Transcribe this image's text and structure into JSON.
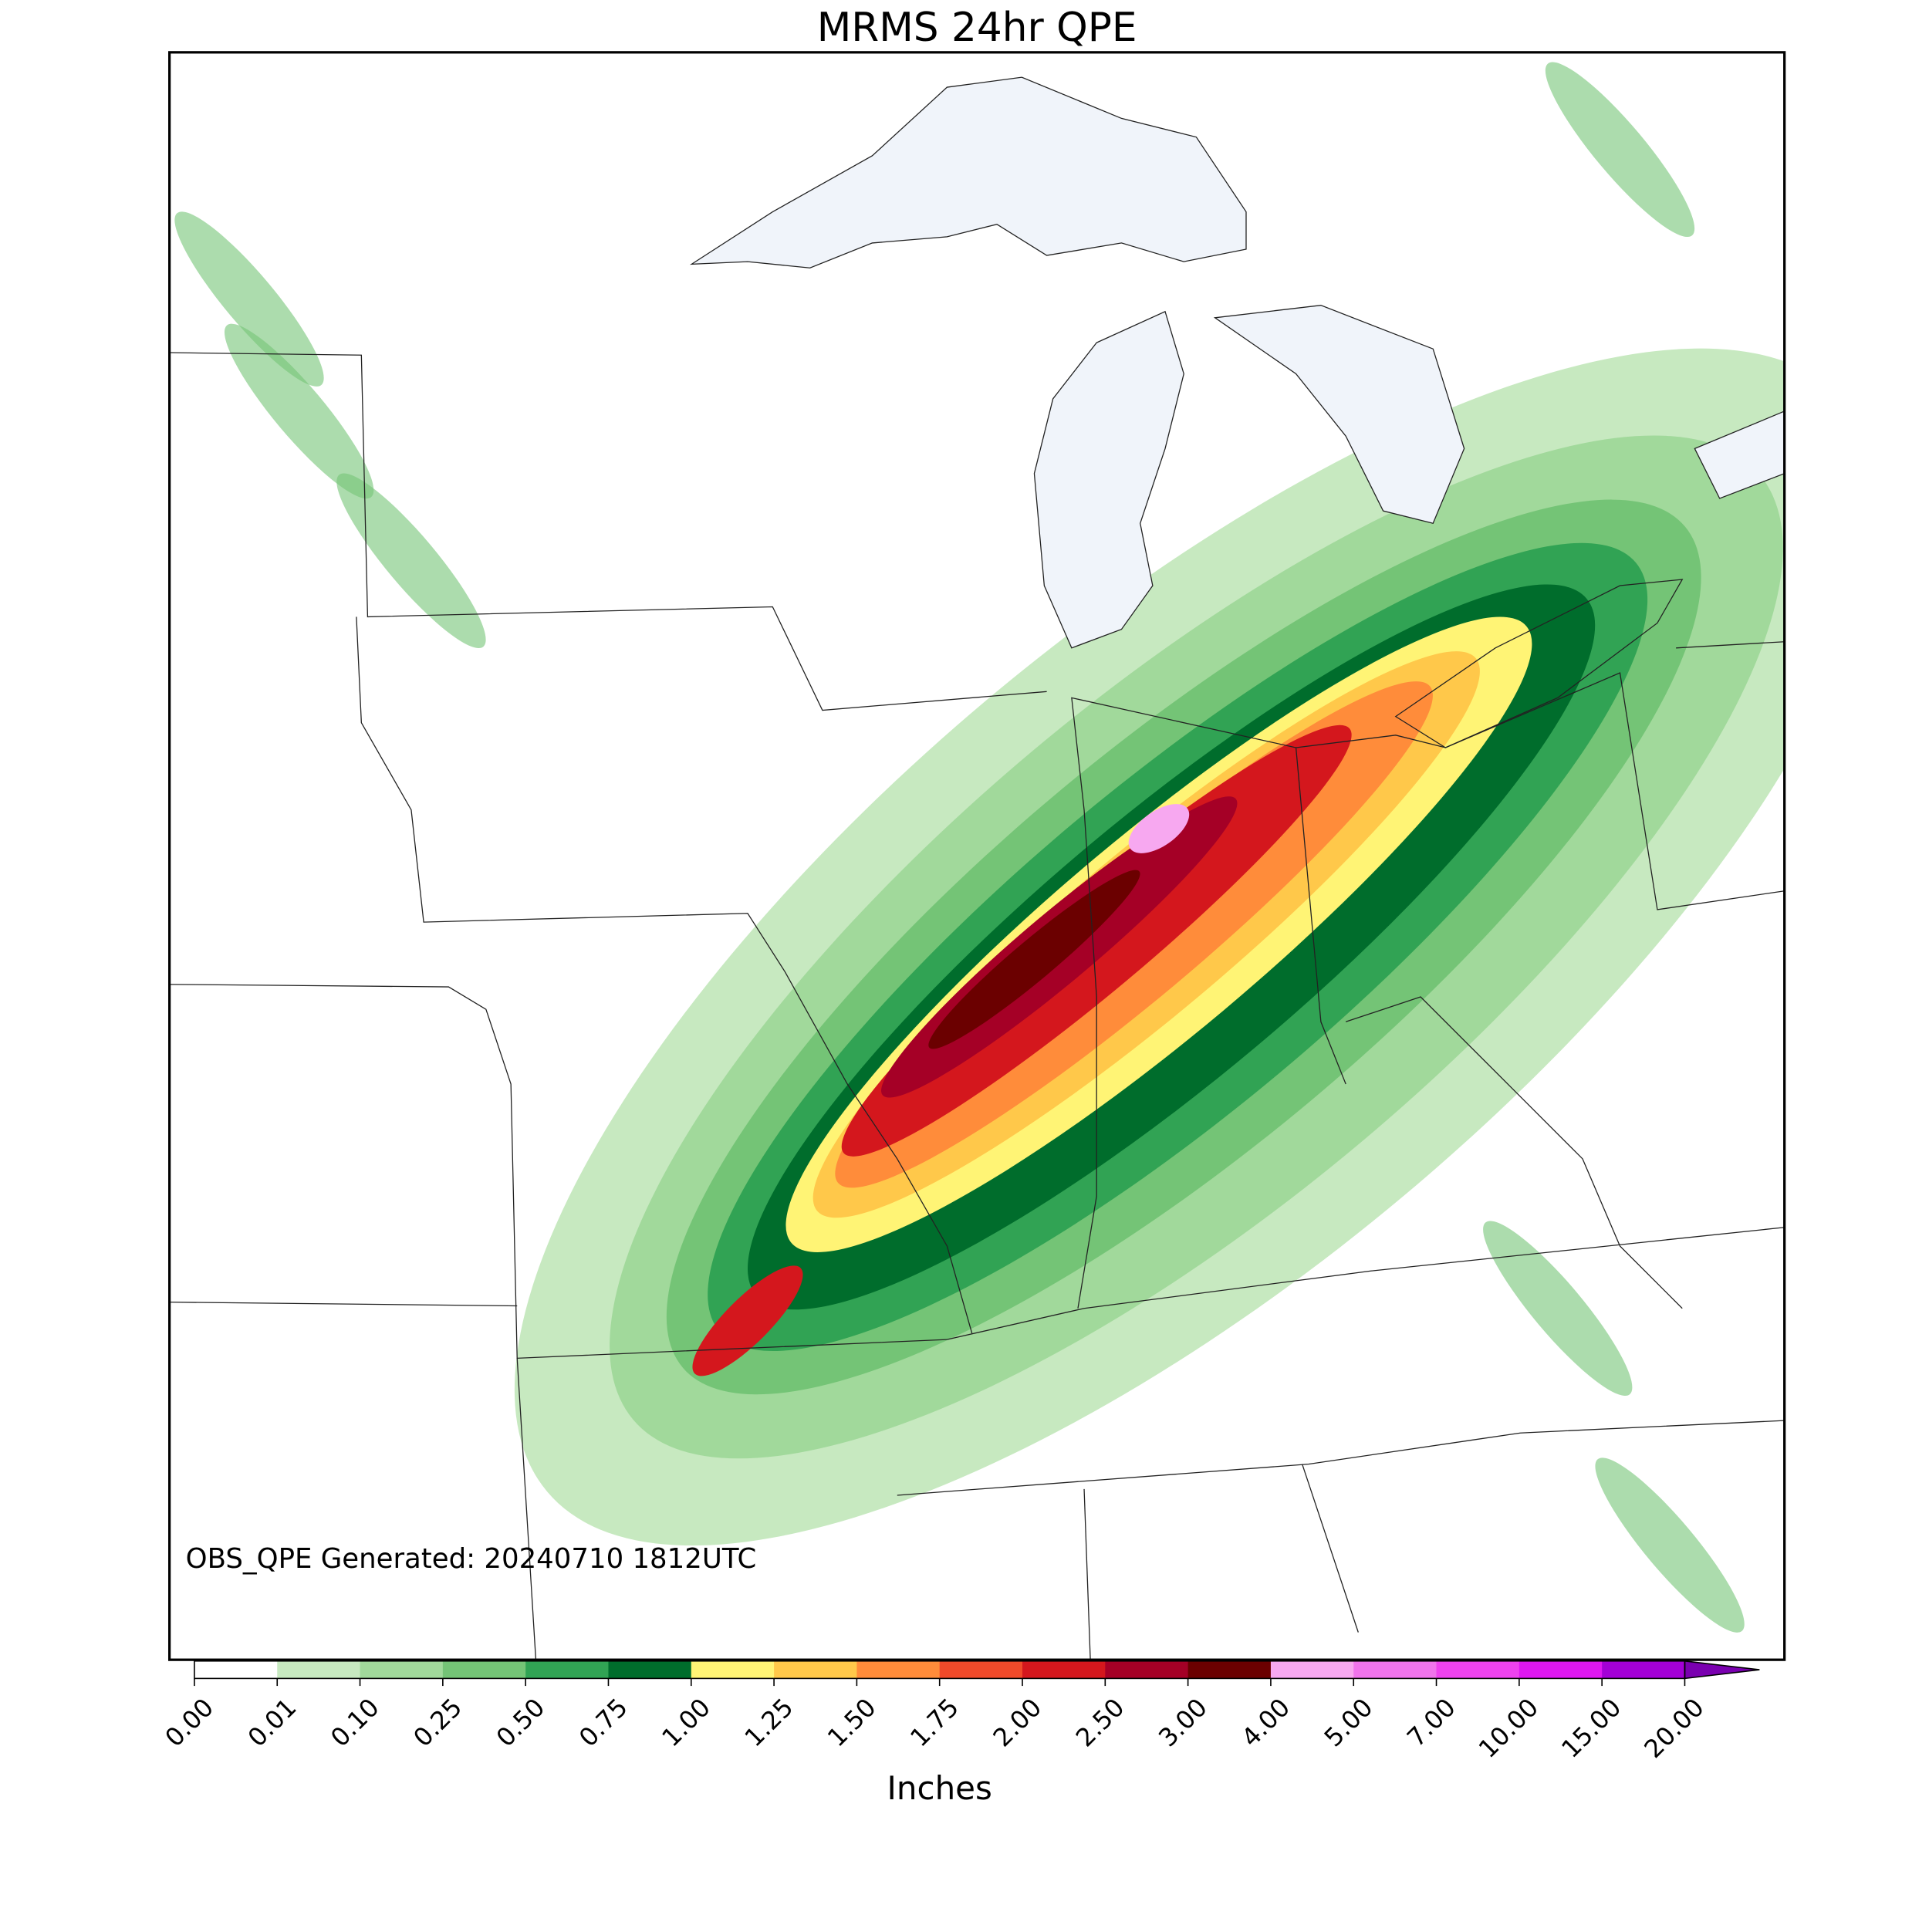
{
  "title": "MRMS 24hr QPE",
  "annotation": "OBS_QPE Generated: 20240710 1812UTC",
  "colorbar": {
    "label": "Inches",
    "ticks": [
      {
        "value": 0,
        "label": "0.00"
      },
      {
        "value": 0.01,
        "label": "0.01"
      },
      {
        "value": 0.1,
        "label": "0.10"
      },
      {
        "value": 0.25,
        "label": "0.25"
      },
      {
        "value": 0.5,
        "label": "0.50"
      },
      {
        "value": 0.75,
        "label": "0.75"
      },
      {
        "value": 1,
        "label": "1.00"
      },
      {
        "value": 1.25,
        "label": "1.25"
      },
      {
        "value": 1.5,
        "label": "1.50"
      },
      {
        "value": 1.75,
        "label": "1.75"
      },
      {
        "value": 2,
        "label": "2.00"
      },
      {
        "value": 2.5,
        "label": "2.50"
      },
      {
        "value": 3,
        "label": "3.00"
      },
      {
        "value": 4,
        "label": "4.00"
      },
      {
        "value": 5,
        "label": "5.00"
      },
      {
        "value": 7,
        "label": "7.00"
      },
      {
        "value": 10,
        "label": "10.00"
      },
      {
        "value": 15,
        "label": "15.00"
      },
      {
        "value": 20,
        "label": "20.00"
      }
    ],
    "colors": [
      "#ffffff",
      "#c7e9c0",
      "#a1d99b",
      "#74c476",
      "#31a354",
      "#006d2c",
      "#fff475",
      "#ffc84a",
      "#ff8c3a",
      "#f04a2a",
      "#d4171d",
      "#a50026",
      "#6b0000",
      "#f7a8f0",
      "#f074ec",
      "#ee42ee",
      "#de17f0",
      "#a300d6"
    ],
    "extend_color": "#7a00b0"
  }
}
